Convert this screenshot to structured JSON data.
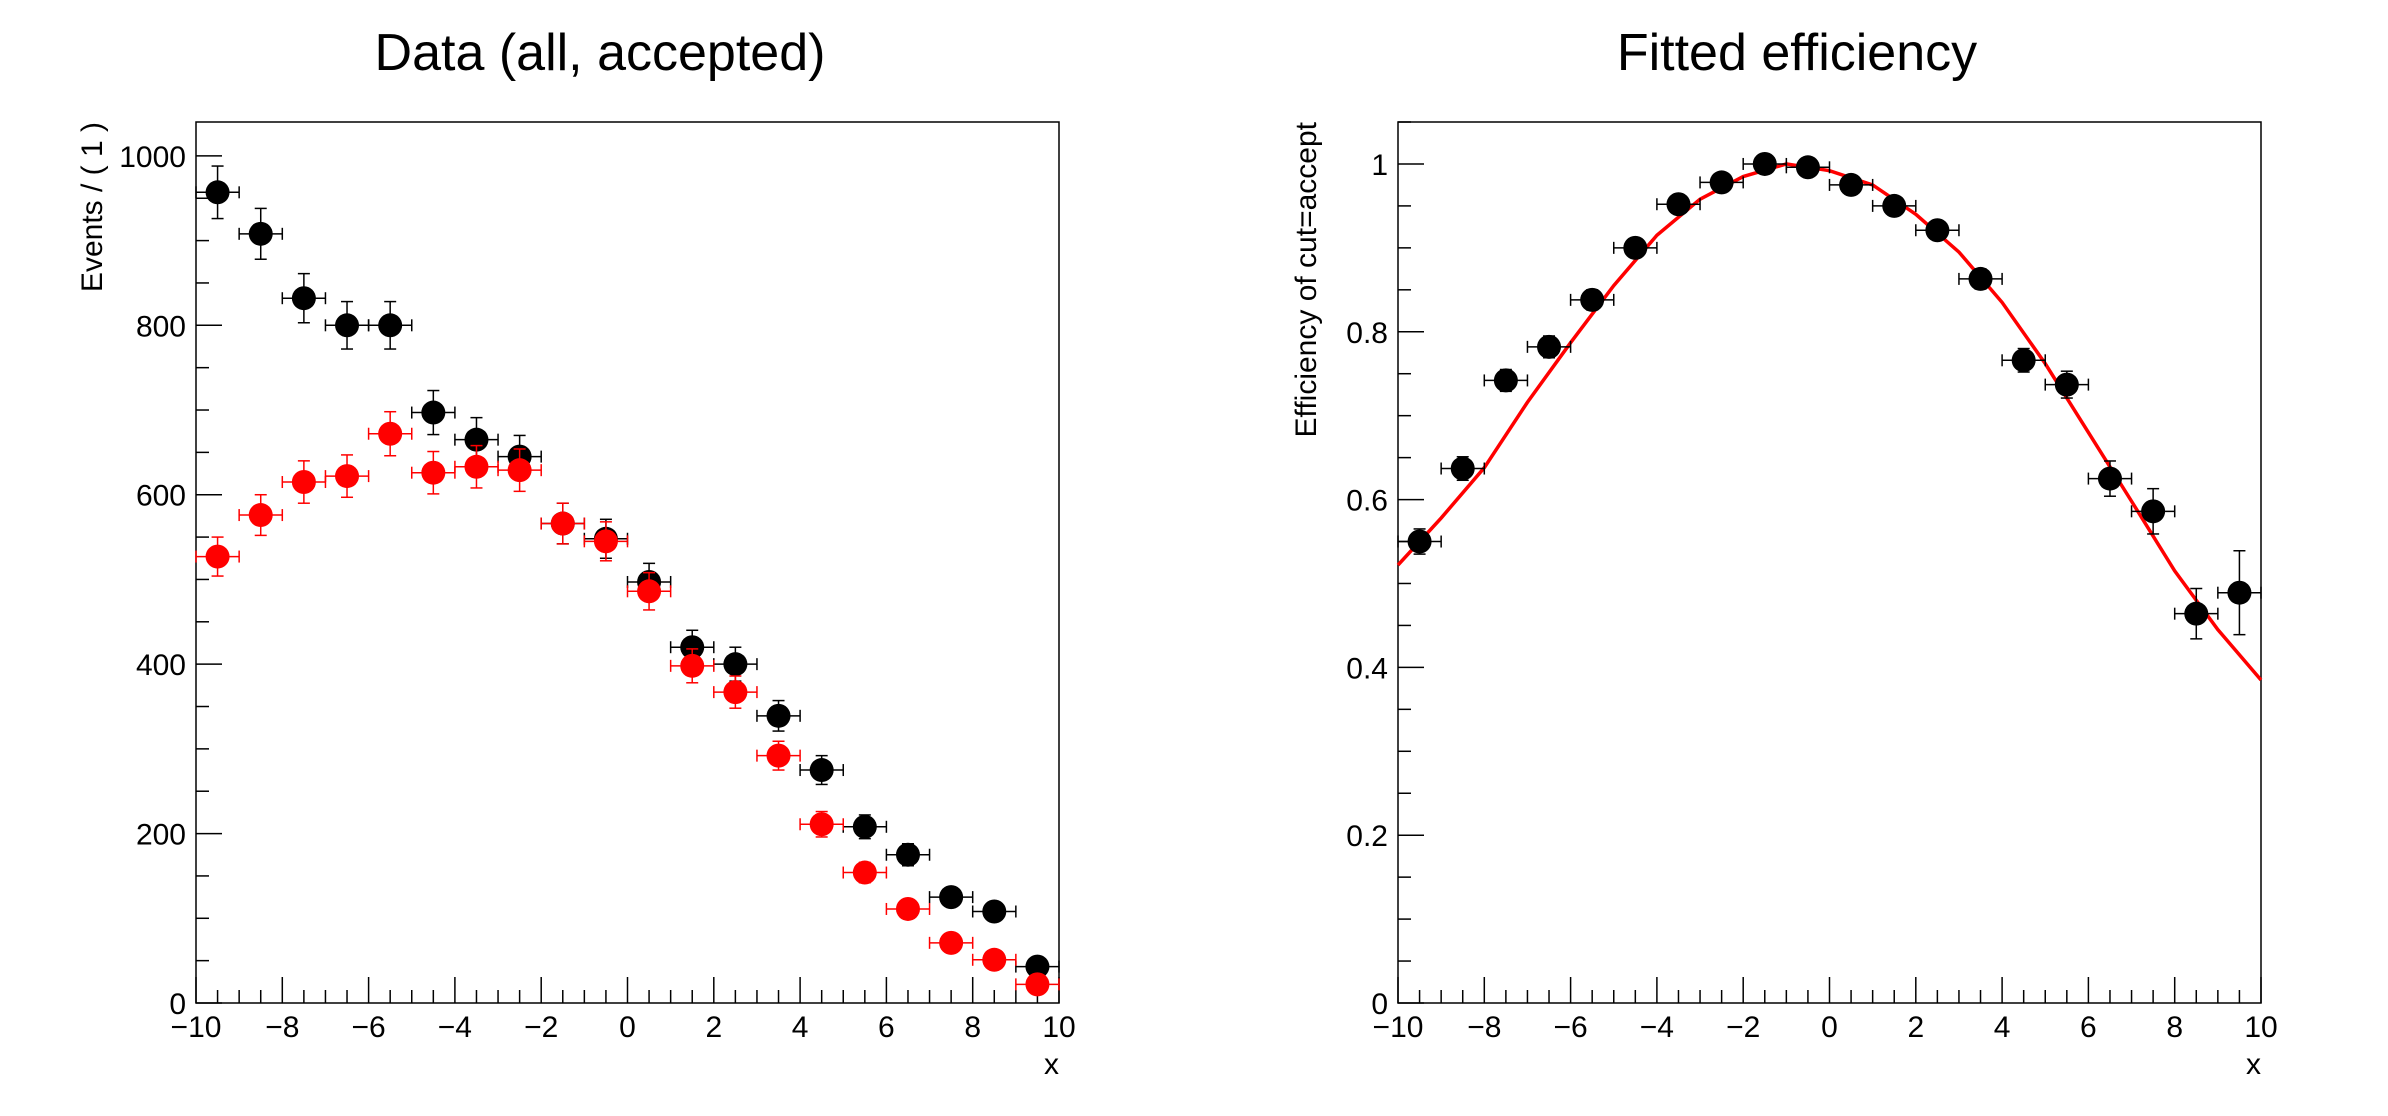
{
  "chart_data": [
    {
      "type": "scatter",
      "title": "Data (all, accepted)",
      "xlabel": "x",
      "ylabel": "Events / ( 1 )",
      "xlim": [
        -10,
        10
      ],
      "ylim": [
        0,
        1040
      ],
      "x_ticks": [
        "−10",
        "−8",
        "−6",
        "−4",
        "−2",
        "0",
        "2",
        "4",
        "6",
        "8",
        "10"
      ],
      "y_ticks": [
        "0",
        "200",
        "400",
        "600",
        "800",
        "1000"
      ],
      "x": [
        -9.5,
        -8.5,
        -7.5,
        -6.5,
        -5.5,
        -4.5,
        -3.5,
        -2.5,
        -1.5,
        -0.5,
        0.5,
        1.5,
        2.5,
        3.5,
        4.5,
        5.5,
        6.5,
        7.5,
        8.5,
        9.5
      ],
      "xerr": 0.5,
      "series": [
        {
          "color": "#000000",
          "values": [
            957,
            908,
            832,
            800,
            800,
            697,
            665,
            645,
            566,
            548,
            497,
            420,
            400,
            339,
            275,
            208,
            175,
            125,
            108,
            43
          ],
          "yerr": [
            31,
            30,
            29,
            28,
            28,
            26,
            26,
            25,
            24,
            23,
            22,
            20,
            20,
            18,
            17,
            14,
            13,
            11,
            10,
            7
          ]
        },
        {
          "color": "#ff0000",
          "values": [
            527,
            576,
            615,
            622,
            672,
            626,
            633,
            629,
            566,
            545,
            486,
            398,
            367,
            292,
            211,
            154,
            111,
            71,
            51,
            22
          ],
          "yerr": [
            23,
            24,
            25,
            25,
            26,
            25,
            25,
            25,
            24,
            23,
            22,
            20,
            19,
            17,
            15,
            12,
            11,
            8,
            7,
            5
          ]
        }
      ],
      "grid": false
    },
    {
      "type": "scatter",
      "title": "Fitted efficiency",
      "xlabel": "x",
      "ylabel": "Efficiency of cut=accept",
      "xlim": [
        -10,
        10
      ],
      "ylim": [
        0,
        1.05
      ],
      "x_ticks": [
        "−10",
        "−8",
        "−6",
        "−4",
        "−2",
        "0",
        "2",
        "4",
        "6",
        "8",
        "10"
      ],
      "y_ticks": [
        "0",
        "0.2",
        "0.4",
        "0.6",
        "0.8",
        "1"
      ],
      "x": [
        -9.5,
        -8.5,
        -7.5,
        -6.5,
        -5.5,
        -4.5,
        -3.5,
        -2.5,
        -1.5,
        -0.5,
        0.5,
        1.5,
        2.5,
        3.5,
        4.5,
        5.5,
        6.5,
        7.5,
        8.5,
        9.5
      ],
      "xerr": 0.5,
      "series": [
        {
          "color": "#000000",
          "values": [
            0.55,
            0.637,
            0.742,
            0.782,
            0.838,
            0.9,
            0.952,
            0.978,
            1.0,
            0.996,
            0.975,
            0.95,
            0.921,
            0.863,
            0.766,
            0.737,
            0.625,
            0.586,
            0.464,
            0.489
          ],
          "yerr": [
            0.015,
            0.014,
            0.013,
            0.013,
            0.012,
            0.01,
            0.008,
            0.006,
            0.002,
            0.003,
            0.006,
            0.008,
            0.01,
            0.012,
            0.014,
            0.016,
            0.021,
            0.027,
            0.03,
            0.05
          ]
        }
      ],
      "fit": {
        "color": "#ff0000",
        "x": [
          -10,
          -9,
          -8,
          -7,
          -6,
          -5,
          -4,
          -3,
          -2,
          -1,
          0,
          1,
          2,
          3,
          4,
          5,
          6,
          7,
          8,
          9,
          10
        ],
        "y": [
          0.522,
          0.578,
          0.638,
          0.716,
          0.787,
          0.855,
          0.915,
          0.958,
          0.985,
          1.0,
          0.992,
          0.975,
          0.94,
          0.895,
          0.835,
          0.762,
          0.68,
          0.598,
          0.515,
          0.445,
          0.385
        ]
      },
      "grid": false
    }
  ]
}
